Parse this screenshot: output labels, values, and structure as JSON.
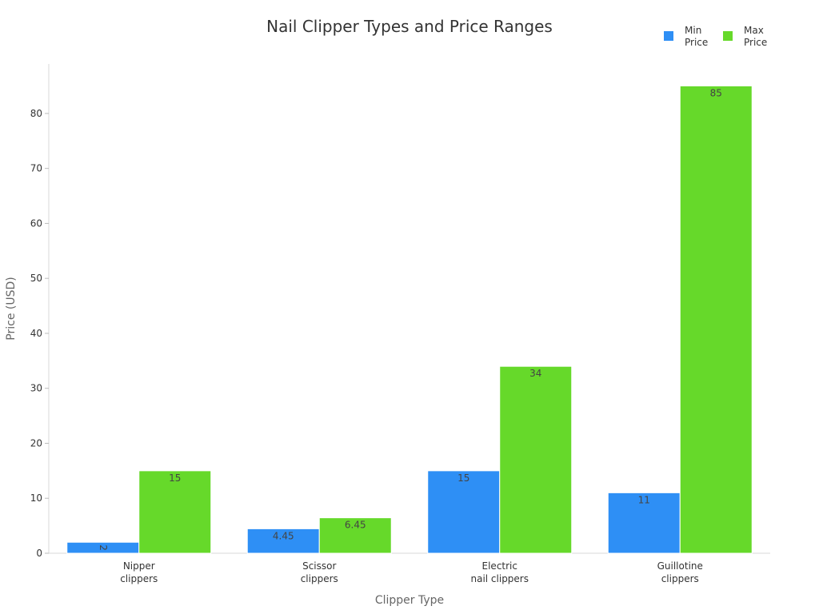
{
  "chart_data": {
    "type": "bar",
    "title": "Nail Clipper Types and Price Ranges",
    "xlabel": "Clipper Type",
    "ylabel": "Price (USD)",
    "categories": [
      [
        "Nipper",
        "clippers"
      ],
      [
        "Scissor",
        "clippers"
      ],
      [
        "Electric",
        "nail clippers"
      ],
      [
        "Guillotine",
        "clippers"
      ]
    ],
    "series": [
      {
        "name": [
          "Min",
          "Price"
        ],
        "color": "#2e8ff5",
        "values": [
          2,
          4.45,
          15,
          11
        ],
        "labels": [
          "2",
          "4.45",
          "15",
          "11"
        ]
      },
      {
        "name": [
          "Max",
          "Price"
        ],
        "color": "#66d92a",
        "values": [
          15,
          6.45,
          34,
          85
        ],
        "labels": [
          "15",
          "6.45",
          "34",
          "85"
        ]
      }
    ],
    "ylim": [
      0,
      89
    ],
    "yticks": [
      0,
      10,
      20,
      30,
      40,
      50,
      60,
      70,
      80
    ],
    "grid": false,
    "legend_position": "top-right"
  }
}
